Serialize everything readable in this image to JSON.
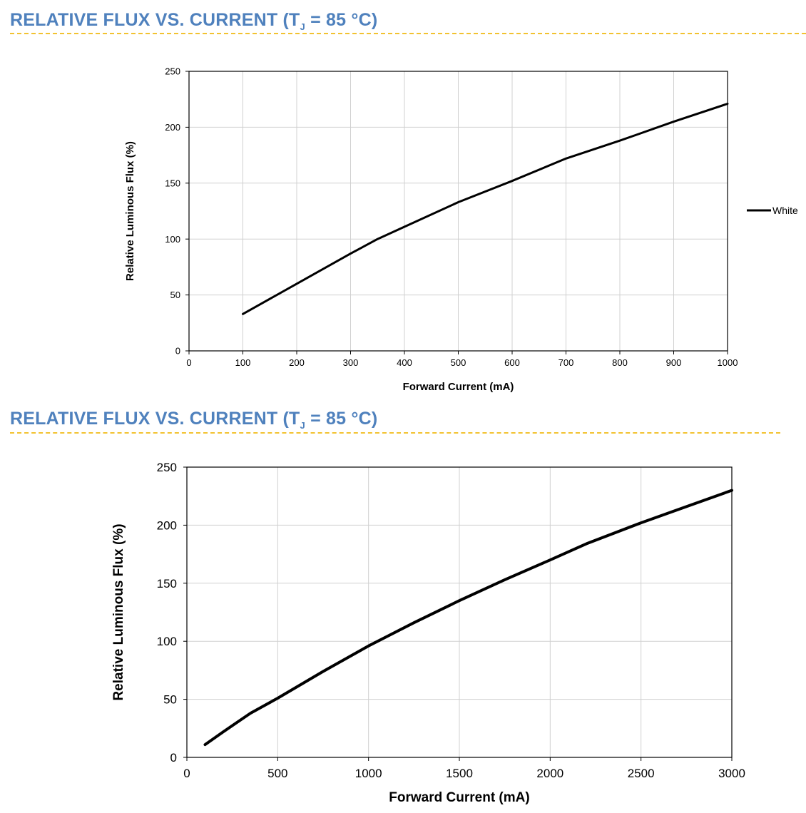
{
  "sections": [
    {
      "title_main": "RELATIVE FLUX VS. CURRENT (T",
      "title_sub": "J",
      "title_tail": " = 85 °C)"
    },
    {
      "title_main": "RELATIVE FLUX VS. CURRENT (T",
      "title_sub": "J",
      "title_tail": " = 85 °C)"
    }
  ],
  "colors": {
    "title": "#4f81bd",
    "rule": "#f2c230",
    "line": "#000000",
    "grid": "#d0d0d0"
  },
  "chart_data": [
    {
      "type": "line",
      "title": "",
      "xlabel": "Forward Current (mA)",
      "ylabel": "Relative Luminous Flux (%)",
      "xlim": [
        0,
        1000
      ],
      "ylim": [
        0,
        250
      ],
      "xticks": [
        0,
        100,
        200,
        300,
        400,
        500,
        600,
        700,
        800,
        900,
        1000
      ],
      "yticks": [
        0,
        50,
        100,
        150,
        200,
        250
      ],
      "grid": true,
      "legend": "right",
      "series": [
        {
          "name": "White",
          "x": [
            100,
            200,
            300,
            350,
            400,
            500,
            600,
            700,
            800,
            900,
            1000
          ],
          "y": [
            33,
            60,
            87,
            100,
            111,
            133,
            152,
            172,
            188,
            205,
            221
          ]
        }
      ]
    },
    {
      "type": "line",
      "title": "",
      "xlabel": "Forward Current (mA)",
      "ylabel": "Relative Luminous Flux (%)",
      "xlim": [
        0,
        3000
      ],
      "ylim": [
        0,
        250
      ],
      "xticks": [
        0,
        500,
        1000,
        1500,
        2000,
        2500,
        3000
      ],
      "yticks": [
        0,
        50,
        100,
        150,
        200,
        250
      ],
      "grid": true,
      "legend": "none",
      "series": [
        {
          "x": [
            100,
            200,
            350,
            500,
            750,
            1000,
            1250,
            1500,
            1750,
            2000,
            2200,
            2500,
            2750,
            3000
          ],
          "y": [
            11,
            22,
            38,
            51,
            74,
            96,
            116,
            135,
            153,
            170,
            184,
            202,
            216,
            230
          ]
        }
      ]
    }
  ]
}
